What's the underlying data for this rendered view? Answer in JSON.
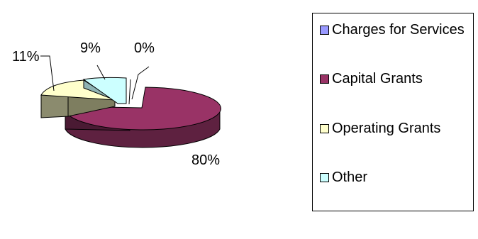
{
  "chart_data": {
    "type": "pie",
    "title": "",
    "slices": [
      {
        "label": "Charges for Services",
        "value": 0,
        "display": "0%",
        "color": "#9999FF"
      },
      {
        "label": "Capital Grants",
        "value": 80,
        "display": "80%",
        "color": "#993366"
      },
      {
        "label": "Operating Grants",
        "value": 11,
        "display": "11%",
        "color": "#FFFFCC"
      },
      {
        "label": "Other",
        "value": 9,
        "display": "9%",
        "color": "#CCFFFF"
      }
    ],
    "legend_placement": "right"
  }
}
